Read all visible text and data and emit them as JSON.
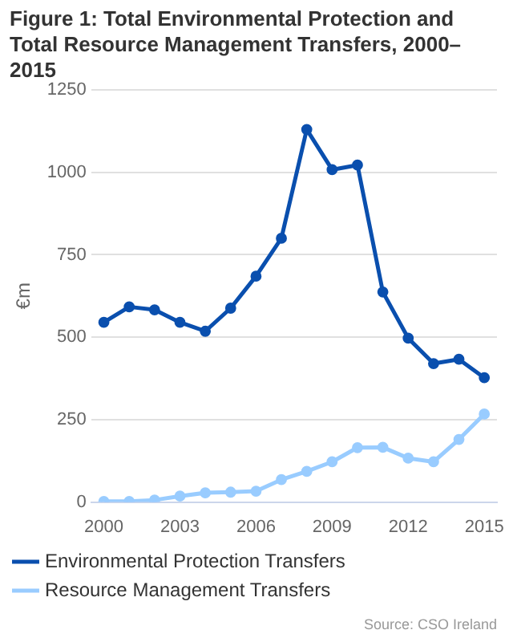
{
  "chart_data": {
    "type": "line",
    "title": "Figure 1: Total Environmental Protection and Total Resource Management Transfers, 2000–2015",
    "ylabel": "€m",
    "x": [
      2000,
      2001,
      2002,
      2003,
      2004,
      2005,
      2006,
      2007,
      2008,
      2009,
      2010,
      2011,
      2012,
      2013,
      2014,
      2015
    ],
    "series": [
      {
        "name": "Environmental Protection Transfers",
        "color": "#0a4fae",
        "values": [
          545,
          592,
          583,
          545,
          518,
          588,
          685,
          800,
          1130,
          1008,
          1022,
          637,
          497,
          420,
          433,
          377
        ]
      },
      {
        "name": "Resource Management Transfers",
        "color": "#99ccff",
        "values": [
          2,
          2,
          6,
          18,
          28,
          30,
          33,
          68,
          93,
          122,
          165,
          166,
          133,
          122,
          190,
          267
        ]
      }
    ],
    "xlim": [
      1999.5,
      2015.5
    ],
    "xticks": [
      2000,
      2003,
      2006,
      2009,
      2012,
      2015
    ],
    "ylim": [
      0,
      1250
    ],
    "yticks": [
      0,
      250,
      500,
      750,
      1000,
      1250
    ],
    "grid": "y",
    "legend": "bottom",
    "marker": "circle",
    "line_style": "solid",
    "annotations": [
      "Source: CSO Ireland"
    ]
  }
}
